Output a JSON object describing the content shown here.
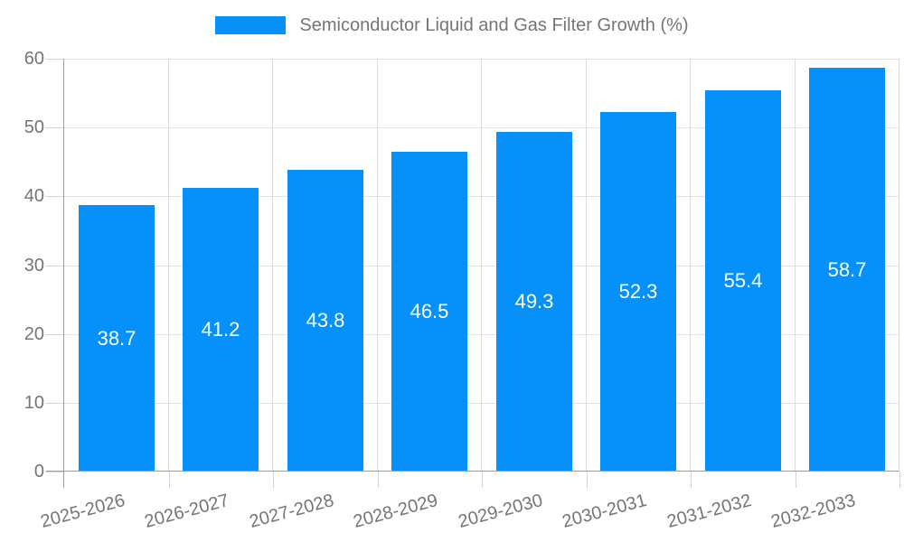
{
  "legend": {
    "label": "Semiconductor Liquid and Gas Filter Growth (%)"
  },
  "colors": {
    "bar": "#0591F9",
    "grid": "#e2e2e2",
    "axis": "#9e9e9e",
    "tick_text": "#757575",
    "value_label_text": "#ffffff",
    "background": "#ffffff"
  },
  "chart_data": {
    "type": "bar",
    "title": "Semiconductor Liquid and Gas Filter Growth (%)",
    "categories": [
      "2025-2026",
      "2026-2027",
      "2027-2028",
      "2028-2029",
      "2029-2030",
      "2030-2031",
      "2031-2032",
      "2032-2033"
    ],
    "values": [
      38.7,
      41.2,
      43.8,
      46.5,
      49.3,
      52.3,
      55.4,
      58.7
    ],
    "value_labels": [
      "38.7",
      "41.2",
      "43.8",
      "46.5",
      "49.3",
      "52.3",
      "55.4",
      "58.7"
    ],
    "yticks": [
      "0",
      "10",
      "20",
      "30",
      "40",
      "50",
      "60"
    ],
    "xlabel": "",
    "ylabel": "",
    "ylim": [
      0,
      60
    ],
    "grid": true,
    "legend_position": "top-center",
    "value_label_position": "inside-center",
    "bar_color": "#0591F9"
  }
}
